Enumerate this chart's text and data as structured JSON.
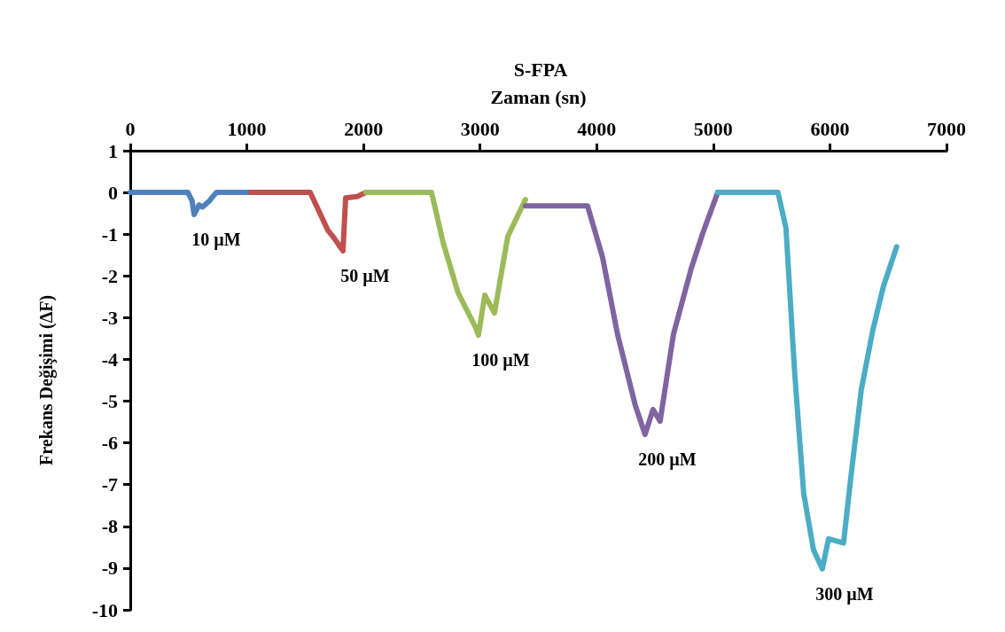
{
  "chart_data": {
    "type": "line",
    "title": "S-FPA",
    "xlabel": "Zaman (sn)",
    "ylabel": "Frekans Değişimi (ΔF)",
    "xlim": [
      0,
      7000
    ],
    "xticks": [
      0,
      1000,
      2000,
      3000,
      4000,
      5000,
      6000,
      7000
    ],
    "ylim": [
      -10,
      1
    ],
    "yticks": [
      -10,
      -9,
      -8,
      -7,
      -6,
      -5,
      -4,
      -3,
      -2,
      -1,
      0,
      1
    ],
    "grid": false,
    "marker": "none",
    "line_style": "solid",
    "series": [
      {
        "color": "#4f81bd",
        "x": [
          0,
          494,
          530,
          547,
          590,
          620,
          680,
          707,
          740,
          1034
        ],
        "values": [
          0,
          0,
          -0.2,
          -0.53,
          -0.3,
          -0.35,
          -0.2,
          -0.1,
          0,
          0
        ]
      },
      {
        "color": "#c0504d",
        "x": [
          1034,
          1543,
          1695,
          1750,
          1824,
          1847,
          1945,
          2021
        ],
        "values": [
          0,
          0,
          -0.91,
          -1.1,
          -1.4,
          -0.13,
          -0.1,
          0
        ]
      },
      {
        "color": "#9bbb59",
        "x": [
          2021,
          2584,
          2682,
          2811,
          2964,
          2986,
          3040,
          3123,
          3237,
          3389
        ],
        "values": [
          0,
          0,
          -1.19,
          -2.4,
          -3.25,
          -3.42,
          -2.46,
          -2.89,
          -1.06,
          -0.17
        ]
      },
      {
        "color": "#8064a2",
        "x": [
          3389,
          3921,
          4050,
          4179,
          4331,
          4415,
          4483,
          4544,
          4658,
          4810,
          4909,
          5038
        ],
        "values": [
          -0.32,
          -0.32,
          -1.55,
          -3.4,
          -5.1,
          -5.8,
          -5.2,
          -5.48,
          -3.4,
          -1.83,
          -0.98,
          0
        ]
      },
      {
        "color": "#4bacc6",
        "x": [
          5038,
          5555,
          5623,
          5699,
          5775,
          5859,
          5935,
          5988,
          6117,
          6178,
          6269,
          6368,
          6459,
          6573
        ],
        "values": [
          0,
          0,
          -0.85,
          -4.37,
          -7.2,
          -8.56,
          -9.02,
          -8.3,
          -8.4,
          -6.86,
          -4.73,
          -3.3,
          -2.25,
          -1.3
        ]
      }
    ],
    "annotations": [
      "10 µM",
      "50 µM",
      "100 µM",
      "200 µM",
      "300 µM"
    ]
  }
}
